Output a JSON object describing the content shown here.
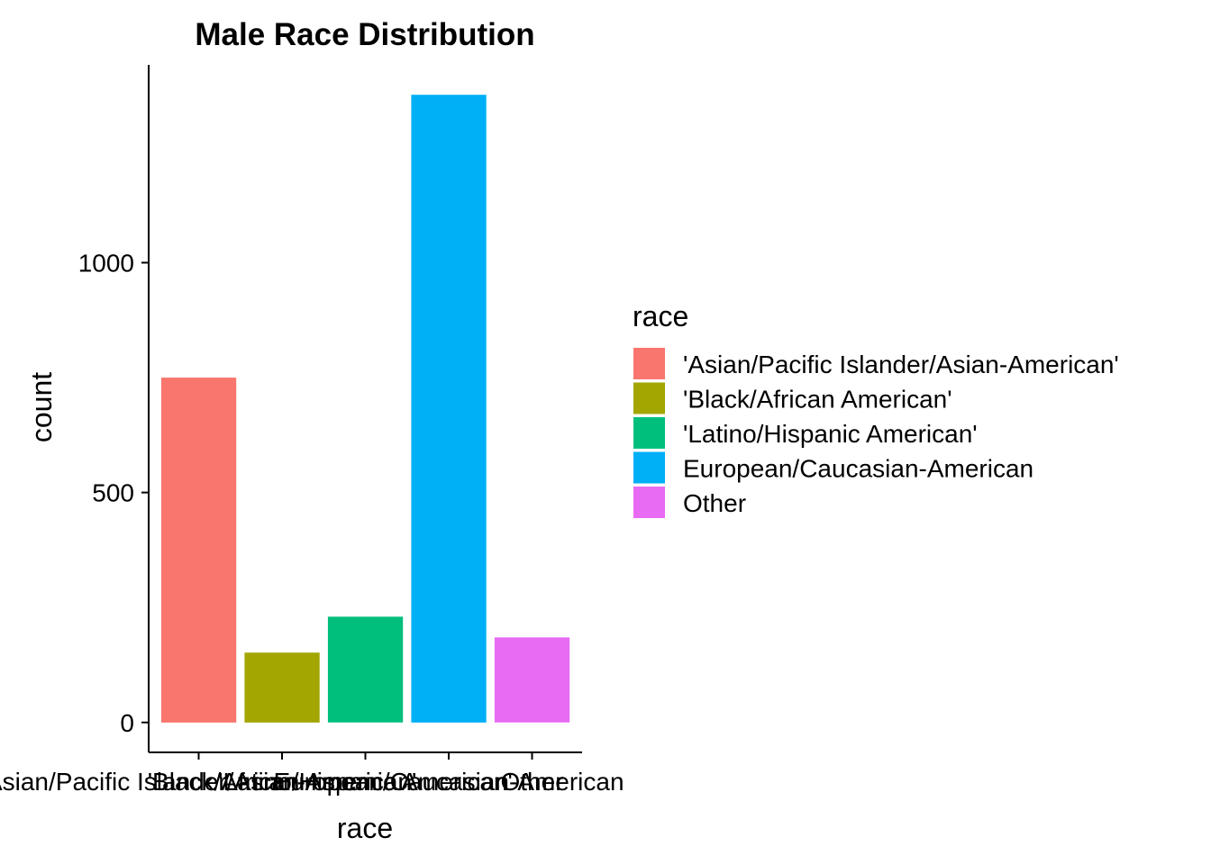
{
  "chart_data": {
    "type": "bar",
    "title": "Male Race Distribution",
    "xlabel": "race",
    "ylabel": "count",
    "categories": [
      "'Asian/Pacific Islander/Asian-American'",
      "'Black/African American'",
      "'Latino/Hispanic American'",
      "European/Caucasian-American",
      "Other"
    ],
    "values": [
      750,
      152,
      230,
      1365,
      185
    ],
    "colors": [
      "#F8766D",
      "#A3A500",
      "#00BF7D",
      "#00B0F6",
      "#E76BF3"
    ],
    "y_ticks": [
      0,
      500,
      1000
    ],
    "ylim": [
      -65,
      1430
    ],
    "grid": false,
    "legend": {
      "title": "race",
      "position": "right",
      "entries": [
        "'Asian/Pacific Islander/Asian-American'",
        "'Black/African American'",
        "'Latino/Hispanic American'",
        "European/Caucasian-American",
        "Other"
      ]
    }
  }
}
